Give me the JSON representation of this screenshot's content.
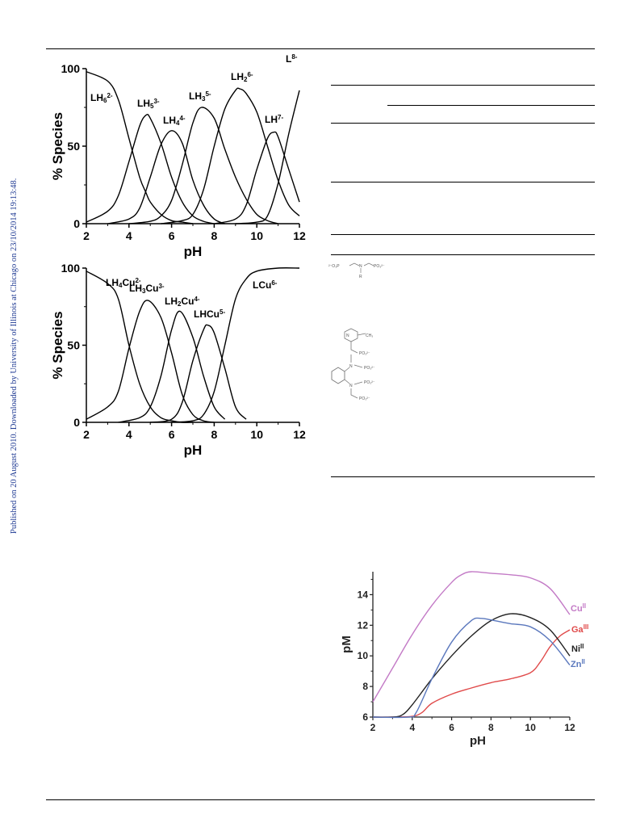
{
  "sidebar_text": "Published on 20 August 2010. Downloaded by University of Illinois at Chicago on 23/10/2014 19:13:48.",
  "chart_data": [
    {
      "type": "line",
      "xlabel": "pH",
      "ylabel": "% Species",
      "xlim": [
        2,
        12
      ],
      "ylim": [
        0,
        100
      ],
      "xticks": [
        "2",
        "4",
        "6",
        "8",
        "10",
        "12"
      ],
      "yticks": [
        "0",
        "50",
        "100"
      ],
      "series": [
        {
          "name": "LH6",
          "charge": "2-",
          "x": [
            2,
            3,
            3.5,
            4,
            4.5,
            4.8,
            5,
            5.5,
            6,
            6.5,
            7
          ],
          "y": [
            98,
            92,
            80,
            55,
            30,
            20,
            14,
            6,
            2,
            1,
            0
          ]
        },
        {
          "name": "LH5",
          "charge": "3-",
          "x": [
            2,
            3,
            3.5,
            4,
            4.5,
            4.8,
            5,
            5.5,
            6,
            6.5,
            7,
            7.5,
            8
          ],
          "y": [
            1,
            8,
            18,
            40,
            63,
            70,
            68,
            52,
            30,
            14,
            5,
            1.5,
            0
          ]
        },
        {
          "name": "LH4",
          "charge": "4-",
          "x": [
            3,
            4,
            4.5,
            5,
            5.5,
            6,
            6.5,
            7,
            7.5,
            8,
            8.5
          ],
          "y": [
            0,
            3,
            10,
            30,
            51,
            60,
            52,
            28,
            12,
            3,
            0
          ]
        },
        {
          "name": "LH3",
          "charge": "5-",
          "x": [
            4,
            5,
            5.5,
            6,
            6.5,
            7,
            7.4,
            8,
            8.5,
            9,
            9.5,
            10,
            10.5,
            11
          ],
          "y": [
            0,
            1.5,
            5,
            15,
            38,
            65,
            75,
            68,
            48,
            30,
            16,
            6,
            2,
            0
          ]
        },
        {
          "name": "LH2",
          "charge": "6-",
          "x": [
            5.5,
            6.5,
            7,
            7.5,
            8,
            8.5,
            9,
            9.2,
            9.5,
            10,
            10.5,
            11,
            11.5,
            12
          ],
          "y": [
            0,
            2,
            6,
            22,
            50,
            74,
            86,
            87,
            84,
            72,
            50,
            28,
            12,
            5
          ]
        },
        {
          "name": "LH",
          "charge": "7-",
          "x": [
            8,
            9,
            9.5,
            10,
            10.5,
            10.8,
            11,
            11.5,
            12
          ],
          "y": [
            0,
            3,
            12,
            35,
            55,
            59,
            56,
            35,
            14
          ]
        },
        {
          "name": "L",
          "charge": "8-",
          "x": [
            9,
            10,
            10.5,
            11,
            11.5,
            12
          ],
          "y": [
            0,
            1,
            5,
            26,
            58,
            86
          ]
        }
      ]
    },
    {
      "type": "line",
      "xlabel": "pH",
      "ylabel": "% Species",
      "xlim": [
        2,
        12
      ],
      "ylim": [
        0,
        100
      ],
      "xticks": [
        "2",
        "4",
        "6",
        "8",
        "10",
        "12"
      ],
      "yticks": [
        "0",
        "50",
        "100"
      ],
      "series": [
        {
          "name": "LH4Cu",
          "charge": "2-",
          "x": [
            2,
            3,
            3.5,
            4,
            4.5,
            5,
            5.5,
            6,
            6.5,
            7
          ],
          "y": [
            98,
            90,
            80,
            50,
            25,
            10,
            3,
            1,
            0,
            0
          ]
        },
        {
          "name": "LH3Cu",
          "charge": "3-",
          "x": [
            2,
            3,
            3.5,
            4,
            4.5,
            4.9,
            5.5,
            6,
            6.5,
            7,
            7.5,
            8
          ],
          "y": [
            2,
            10,
            20,
            48,
            72,
            79,
            68,
            45,
            18,
            5,
            1,
            0
          ]
        },
        {
          "name": "LH2Cu",
          "charge": "4-",
          "x": [
            3.5,
            4.5,
            5,
            5.5,
            6,
            6.4,
            7,
            7.5,
            8,
            8.5
          ],
          "y": [
            0,
            3,
            10,
            30,
            60,
            72,
            55,
            30,
            10,
            2
          ]
        },
        {
          "name": "LHCu",
          "charge": "5-",
          "x": [
            5,
            6,
            6.5,
            7,
            7.5,
            7.7,
            8,
            8.5,
            9,
            9.5
          ],
          "y": [
            0,
            2,
            13,
            40,
            60,
            63,
            58,
            35,
            10,
            2
          ]
        },
        {
          "name": "LCu",
          "charge": "6-",
          "x": [
            6,
            7,
            7.5,
            8,
            8.5,
            9,
            9.5,
            10,
            11,
            12
          ],
          "y": [
            0,
            1,
            5,
            20,
            50,
            80,
            93,
            98,
            100,
            100
          ]
        }
      ]
    },
    {
      "type": "line",
      "xlabel": "pH",
      "ylabel": "pM",
      "xlim": [
        2,
        12
      ],
      "ylim": [
        6,
        15.5
      ],
      "xticks": [
        "2",
        "4",
        "6",
        "8",
        "10",
        "12"
      ],
      "yticks": [
        "6",
        "8",
        "10",
        "12",
        "14"
      ],
      "series": [
        {
          "name": "Cu",
          "ox": "II",
          "color": "#c37ac6",
          "x": [
            2,
            3,
            4,
            5,
            6,
            6.5,
            7,
            8,
            9,
            10,
            11,
            12
          ],
          "y": [
            7,
            9.2,
            11.4,
            13.3,
            14.8,
            15.3,
            15.5,
            15.4,
            15.3,
            15.1,
            14.4,
            12.7
          ]
        },
        {
          "name": "Ga",
          "ox": "III",
          "color": "#e04a4a",
          "x": [
            2,
            3,
            4,
            4.5,
            5,
            6,
            7,
            8,
            9,
            10,
            10.5,
            11,
            11.5,
            12
          ],
          "y": [
            6,
            6,
            6.05,
            6.3,
            6.9,
            7.5,
            7.9,
            8.25,
            8.5,
            8.9,
            9.6,
            10.6,
            11.3,
            11.7
          ]
        },
        {
          "name": "Ni",
          "ox": "II",
          "color": "#222222",
          "x": [
            2,
            3,
            3.5,
            4,
            5,
            6,
            7,
            8,
            9,
            10,
            11,
            12
          ],
          "y": [
            6,
            6,
            6.15,
            6.8,
            8.5,
            10,
            11.3,
            12.3,
            12.75,
            12.5,
            11.7,
            10
          ]
        },
        {
          "name": "Zn",
          "ox": "II",
          "color": "#5b78bd",
          "x": [
            2,
            3.8,
            4.2,
            5,
            6,
            7,
            7.5,
            8,
            9,
            10,
            11,
            12
          ],
          "y": [
            6,
            6,
            6.3,
            8.5,
            10.9,
            12.3,
            12.45,
            12.35,
            12.1,
            11.9,
            11,
            9.4
          ]
        }
      ]
    }
  ]
}
